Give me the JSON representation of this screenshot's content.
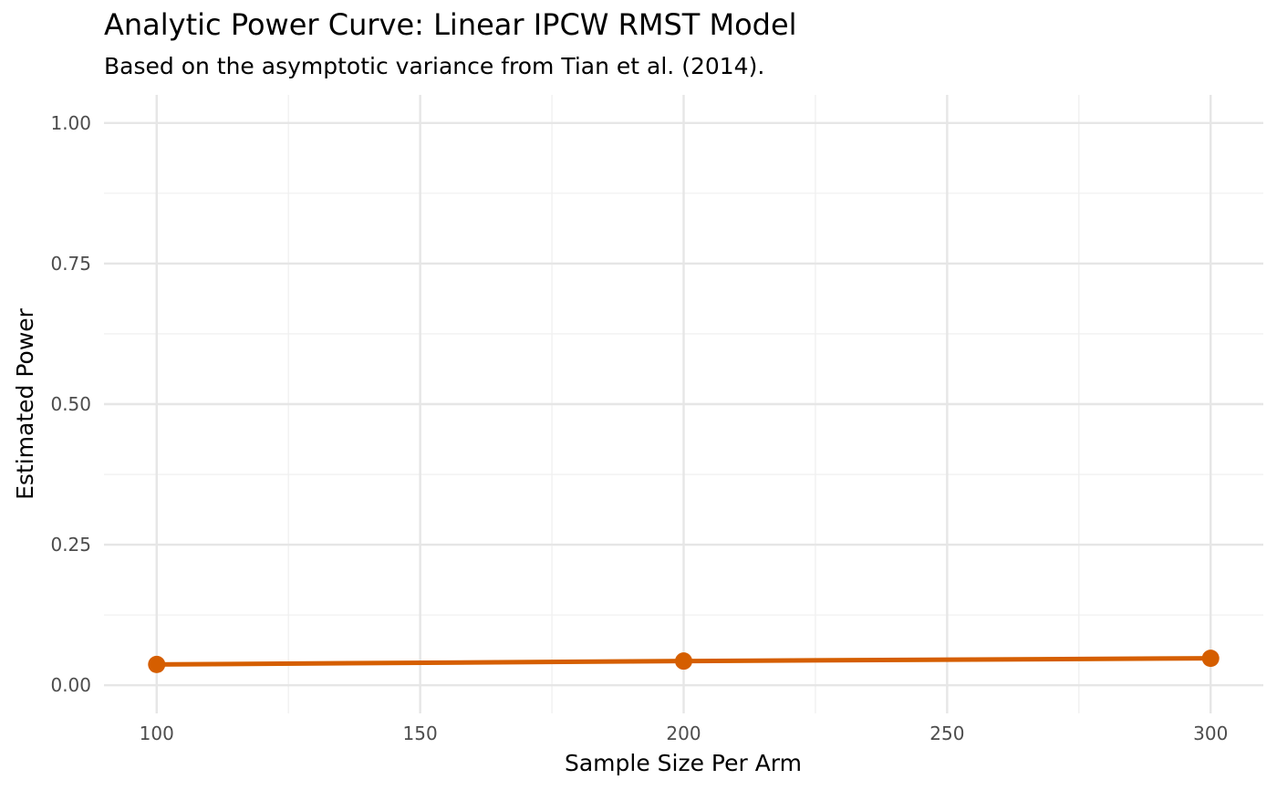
{
  "chart_data": {
    "type": "line",
    "title": "Analytic Power Curve: Linear IPCW RMST Model",
    "subtitle": "Based on the asymptotic variance from Tian et al. (2014).",
    "xlabel": "Sample Size Per Arm",
    "ylabel": "Estimated Power",
    "xlim": [
      90,
      310
    ],
    "ylim": [
      -0.05,
      1.05
    ],
    "x_ticks": [
      100,
      150,
      200,
      250,
      300
    ],
    "x_tick_labels": [
      "100",
      "150",
      "200",
      "250",
      "300"
    ],
    "y_ticks": [
      0,
      0.25,
      0.5,
      0.75,
      1.0
    ],
    "y_tick_labels": [
      "0.00",
      "0.25",
      "0.50",
      "0.75",
      "1.00"
    ],
    "grid": true,
    "series": [
      {
        "x": [
          100,
          200,
          300
        ],
        "values": [
          0.037,
          0.043,
          0.048
        ],
        "color": "#D55E00"
      }
    ]
  }
}
